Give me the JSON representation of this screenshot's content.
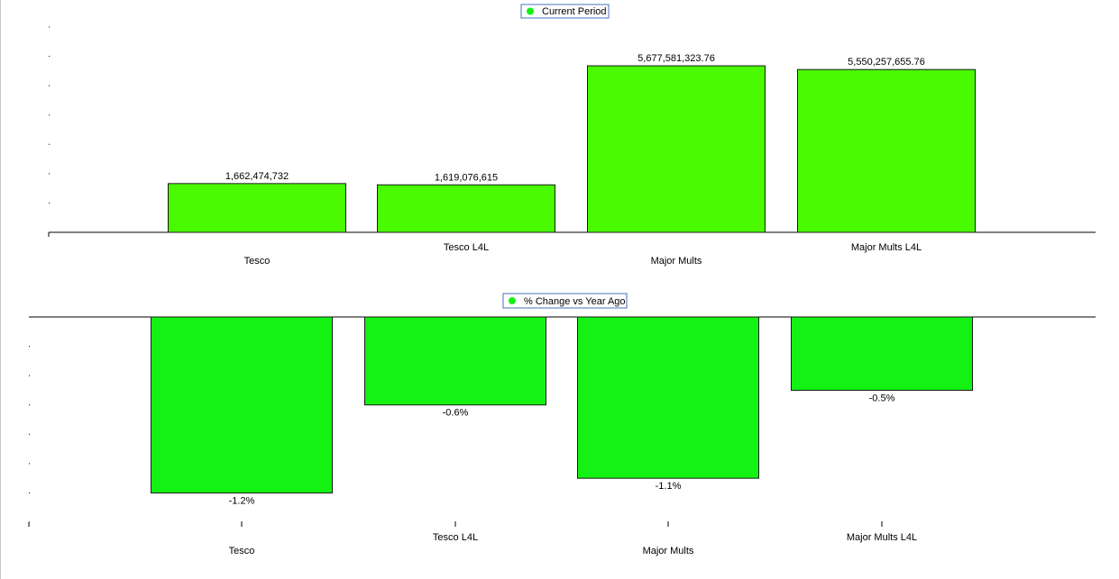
{
  "colors": {
    "bar": "#4afa00",
    "bar2": "#13f213",
    "bar_stroke": "#1a1a1a",
    "legend_border": "#4a72b8",
    "axis": "#000000"
  },
  "chart_data": [
    {
      "type": "bar",
      "categories": [
        "Tesco",
        "Tesco L4L",
        "Major Mults",
        "Major Mults L4L"
      ],
      "series": [
        {
          "name": "Current Period",
          "values": [
            1662474732,
            1619076615,
            5677581323.76,
            5550257655.76
          ]
        }
      ],
      "data_labels": [
        "1,662,474,732",
        "1,619,076,615",
        "5,677,581,323.76",
        "5,550,257,655.76"
      ],
      "ylim": [
        0,
        7000000000
      ],
      "legend": "top-center"
    },
    {
      "type": "bar",
      "categories": [
        "Tesco",
        "Tesco L4L",
        "Major Mults",
        "Major Mults L4L"
      ],
      "series": [
        {
          "name": "% Change vs Year Ago",
          "values": [
            -1.2,
            -0.6,
            -1.1,
            -0.5
          ]
        }
      ],
      "data_labels": [
        "-1.2%",
        "-0.6%",
        "-1.1%",
        "-0.5%"
      ],
      "ylim": [
        -1.4,
        0
      ],
      "legend": "top-center"
    }
  ]
}
